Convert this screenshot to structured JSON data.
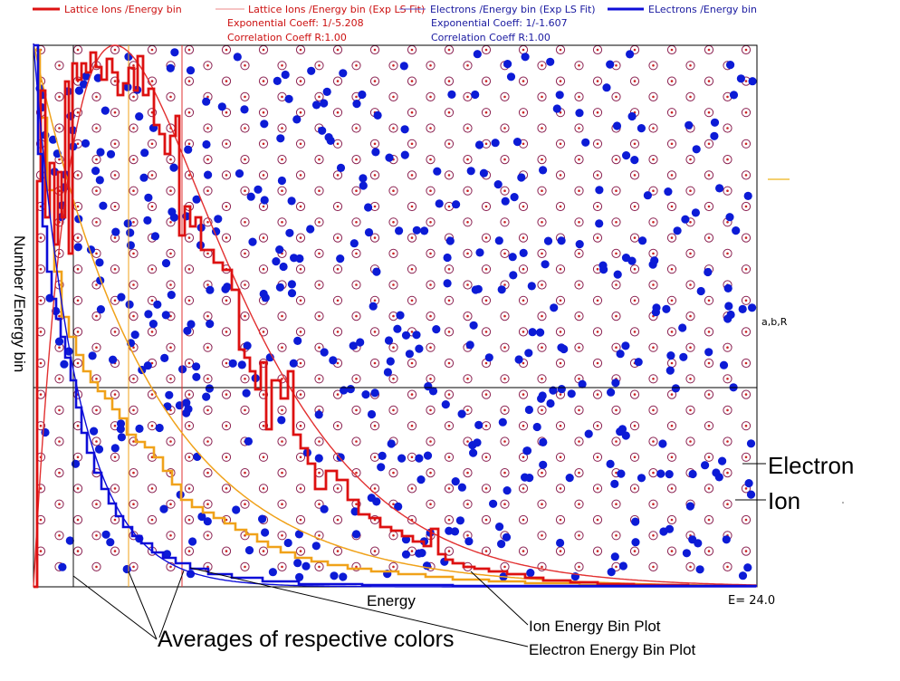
{
  "legend": {
    "ions_label": "Lattice Ions /Energy bin",
    "ions_fit_label": "Lattice Ions /Energy bin (Exp LS Fit)",
    "ions_exp_coeff": "Exponential Coeff: 1/-5.208",
    "ions_corr_coeff": "Correlation Coeff R:1.00",
    "electrons_fit_label": "Electrons /Energy bin (Exp LS Fit)",
    "electrons_exp_coeff": "Exponential Coeff: 1/-1.607",
    "electrons_corr_coeff": "Correlation Coeff R:1.00",
    "electrons_label": "ELectrons /Energy bin"
  },
  "axes": {
    "y_title": "Number /Energy bin",
    "x_title": "Energy",
    "x_max_label": "E= 24.0",
    "side_label": "a,b,R"
  },
  "annotations": {
    "electron": "Electron",
    "ion": "Ion",
    "averages": "Averages of respective colors",
    "ion_plot": "Ion Energy Bin Plot",
    "electron_plot": "Electron Energy Bin Plot"
  },
  "colors": {
    "ion": "#dd1111",
    "ion_fit": "#e23030",
    "orange": "#f0a21a",
    "electron": "#0d0dd8",
    "electron_dot": "#0c1bd6",
    "ion_ring": "#8b2252",
    "ion_center": "#cc2222"
  },
  "chart_data": {
    "type": "line",
    "x_range": [
      0,
      24.0
    ],
    "grid": false,
    "series": [
      {
        "name": "Lattice Ions /Energy bin",
        "color": "#dd1111",
        "style": "step"
      },
      {
        "name": "Lattice Ions /Energy bin (Exp LS Fit)",
        "exp_coeff": "1/-5.208",
        "R": 1.0
      },
      {
        "name": "Electrons /Energy bin (Exp LS Fit)",
        "exp_coeff": "1/-1.607",
        "R": 1.0
      },
      {
        "name": "ELectrons /Energy bin",
        "color": "#0d0dd8",
        "style": "step"
      }
    ]
  }
}
